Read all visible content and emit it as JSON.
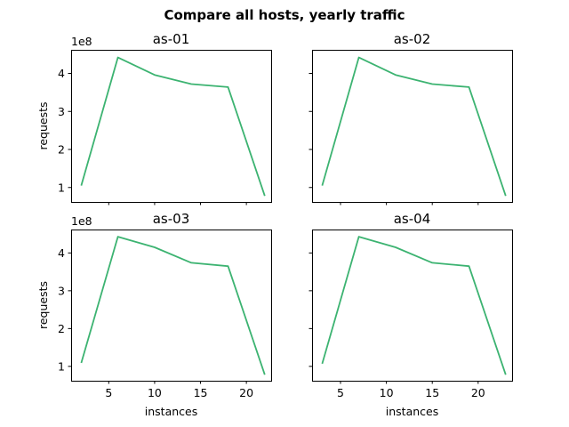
{
  "suptitle": "Compare all hosts, yearly traffic",
  "colors": {
    "series": "#3cb371"
  },
  "chart_data": [
    {
      "type": "line",
      "title": "as-01",
      "xlabel": "",
      "ylabel": "requests",
      "offset_label": "1e8",
      "x": [
        2,
        6,
        10,
        14,
        18,
        22
      ],
      "values": [
        105000000.0,
        442000000.0,
        396000000.0,
        372000000.0,
        364000000.0,
        78000000.0
      ],
      "xlim": [
        0.9,
        22.7
      ],
      "ylim": [
        62000000.0,
        462000000.0
      ],
      "xticks": [],
      "xticklabels": [],
      "yticks": [
        100000000.0,
        200000000.0,
        300000000.0,
        400000000.0
      ],
      "yticklabels": [
        "1",
        "2",
        "3",
        "4"
      ],
      "grid": false
    },
    {
      "type": "line",
      "title": "as-02",
      "xlabel": "",
      "ylabel": "",
      "offset_label": "",
      "x": [
        3,
        7,
        11,
        15,
        19,
        23
      ],
      "values": [
        105000000.0,
        442000000.0,
        396000000.0,
        372000000.0,
        364000000.0,
        78000000.0
      ],
      "xlim": [
        1.9,
        23.7
      ],
      "ylim": [
        62000000.0,
        462000000.0
      ],
      "xticks": [],
      "xticklabels": [],
      "yticks": [
        100000000.0,
        200000000.0,
        300000000.0,
        400000000.0
      ],
      "yticklabels": [
        "",
        "",
        "",
        ""
      ],
      "grid": false
    },
    {
      "type": "line",
      "title": "as-03",
      "xlabel": "instances",
      "ylabel": "requests",
      "offset_label": "1e8",
      "x": [
        2,
        6,
        10,
        14,
        18,
        22
      ],
      "values": [
        109000000.0,
        443000000.0,
        415000000.0,
        374000000.0,
        365000000.0,
        78000000.0
      ],
      "xlim": [
        0.9,
        22.7
      ],
      "ylim": [
        62000000.0,
        462000000.0
      ],
      "xticks": [
        5,
        10,
        15,
        20
      ],
      "xticklabels": [
        "5",
        "10",
        "15",
        "20"
      ],
      "yticks": [
        100000000.0,
        200000000.0,
        300000000.0,
        400000000.0
      ],
      "yticklabels": [
        "1",
        "2",
        "3",
        "4"
      ],
      "grid": false
    },
    {
      "type": "line",
      "title": "as-04",
      "xlabel": "instances",
      "ylabel": "",
      "offset_label": "",
      "x": [
        3,
        7,
        11,
        15,
        19,
        23
      ],
      "values": [
        107000000.0,
        443000000.0,
        415000000.0,
        374000000.0,
        365000000.0,
        78000000.0
      ],
      "xlim": [
        1.9,
        23.7
      ],
      "ylim": [
        62000000.0,
        462000000.0
      ],
      "xticks": [
        5,
        10,
        15,
        20
      ],
      "xticklabels": [
        "5",
        "10",
        "15",
        "20"
      ],
      "yticks": [
        100000000.0,
        200000000.0,
        300000000.0,
        400000000.0
      ],
      "yticklabels": [
        "",
        "",
        "",
        ""
      ],
      "grid": false
    }
  ]
}
